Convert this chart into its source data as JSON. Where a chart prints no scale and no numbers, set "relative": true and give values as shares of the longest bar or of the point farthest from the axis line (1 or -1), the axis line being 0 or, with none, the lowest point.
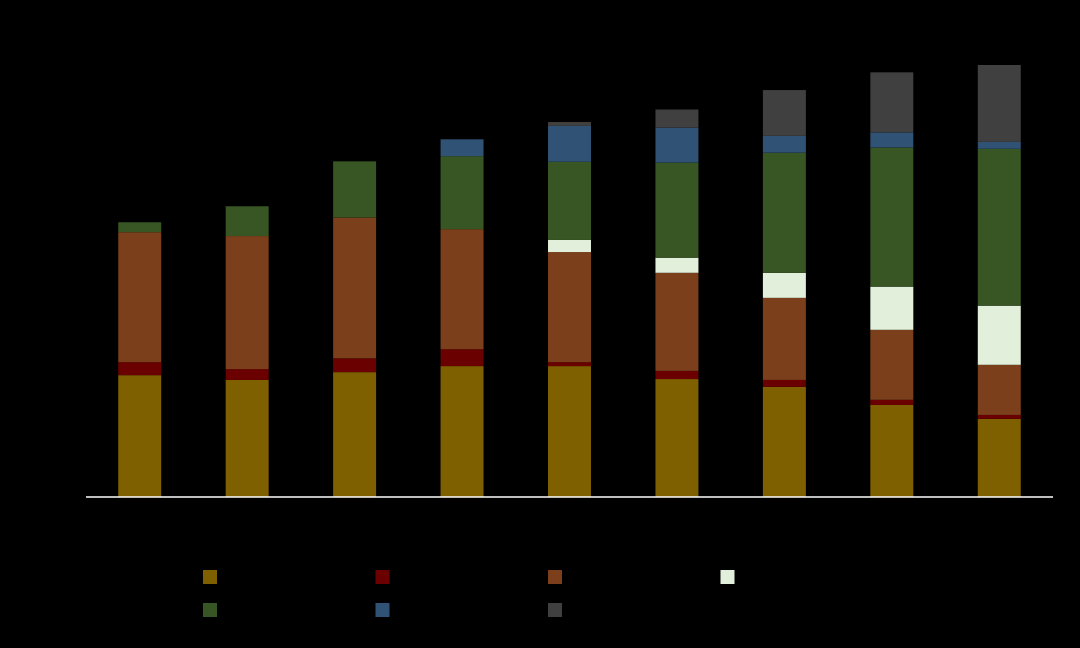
{
  "chart_data": {
    "type": "bar",
    "stacked": true,
    "relative": true,
    "categories": [
      null,
      null,
      null,
      null,
      null,
      null,
      null,
      null,
      null
    ],
    "series": [
      {
        "color": "#7f6000",
        "values": [
          0.282,
          0.271,
          0.289,
          0.303,
          0.303,
          0.273,
          0.255,
          0.213,
          0.181
        ]
      },
      {
        "color": "#6b0000",
        "values": [
          0.03,
          0.025,
          0.032,
          0.039,
          0.009,
          0.019,
          0.016,
          0.012,
          0.009
        ]
      },
      {
        "color": "#7b3f1b",
        "values": [
          0.301,
          0.308,
          0.326,
          0.278,
          0.255,
          0.227,
          0.19,
          0.162,
          0.116
        ]
      },
      {
        "color": "#e2efda",
        "values": [
          null,
          null,
          null,
          null,
          0.028,
          0.035,
          0.058,
          0.1,
          0.137
        ]
      },
      {
        "color": "#375623",
        "values": [
          0.023,
          0.069,
          0.13,
          0.169,
          0.181,
          0.22,
          0.278,
          0.322,
          0.363
        ]
      },
      {
        "color": "#2f5275",
        "values": [
          null,
          null,
          null,
          0.039,
          0.083,
          0.081,
          0.039,
          0.035,
          0.016
        ]
      },
      {
        "color": "#404040",
        "values": [
          null,
          null,
          null,
          null,
          0.009,
          0.042,
          0.106,
          0.139,
          0.178
        ]
      }
    ]
  }
}
